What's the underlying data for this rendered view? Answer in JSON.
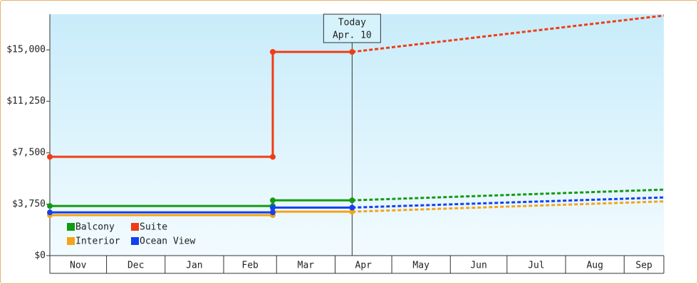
{
  "chart_data": {
    "type": "line",
    "xlim": [
      0,
      325
    ],
    "xticks": [
      0,
      30,
      61,
      92,
      120,
      151,
      181,
      212,
      242,
      273,
      304,
      325
    ],
    "months": [
      "Nov",
      "Dec",
      "Jan",
      "Feb",
      "Mar",
      "Apr",
      "May",
      "Jun",
      "Jul",
      "Aug",
      "Sep"
    ],
    "ylim": [
      0,
      17600
    ],
    "yticks": [
      {
        "value": 0,
        "label": "$0"
      },
      {
        "value": 3750,
        "label": "$3,750"
      },
      {
        "value": 7500,
        "label": "$7,500"
      },
      {
        "value": 11250,
        "label": "$11,250"
      },
      {
        "value": 15000,
        "label": "$15,000"
      }
    ],
    "today": {
      "x": 160,
      "label": "Today",
      "date": "Apr. 10"
    },
    "series": [
      {
        "name": "Balcony",
        "color": "#139a13",
        "x": [
          0,
          118,
          118,
          160
        ],
        "values": [
          3620,
          3620,
          4030,
          4030
        ],
        "forecast_x": [
          160,
          325
        ],
        "forecast_values": [
          4030,
          4810
        ]
      },
      {
        "name": "Suite",
        "color": "#f03c14",
        "x": [
          0,
          118,
          118,
          160
        ],
        "values": [
          7200,
          7200,
          14850,
          14850
        ],
        "forecast_x": [
          160,
          325
        ],
        "forecast_values": [
          14850,
          17500
        ]
      },
      {
        "name": "Interior",
        "color": "#f4a416",
        "x": [
          0,
          118,
          118,
          160
        ],
        "values": [
          2950,
          2950,
          3200,
          3200
        ],
        "forecast_x": [
          160,
          325
        ],
        "forecast_values": [
          3200,
          3950
        ]
      },
      {
        "name": "Ocean View",
        "color": "#1440f0",
        "x": [
          0,
          118,
          118,
          160
        ],
        "values": [
          3150,
          3150,
          3500,
          3500
        ],
        "forecast_x": [
          160,
          325
        ],
        "forecast_values": [
          3500,
          4240
        ]
      }
    ]
  }
}
